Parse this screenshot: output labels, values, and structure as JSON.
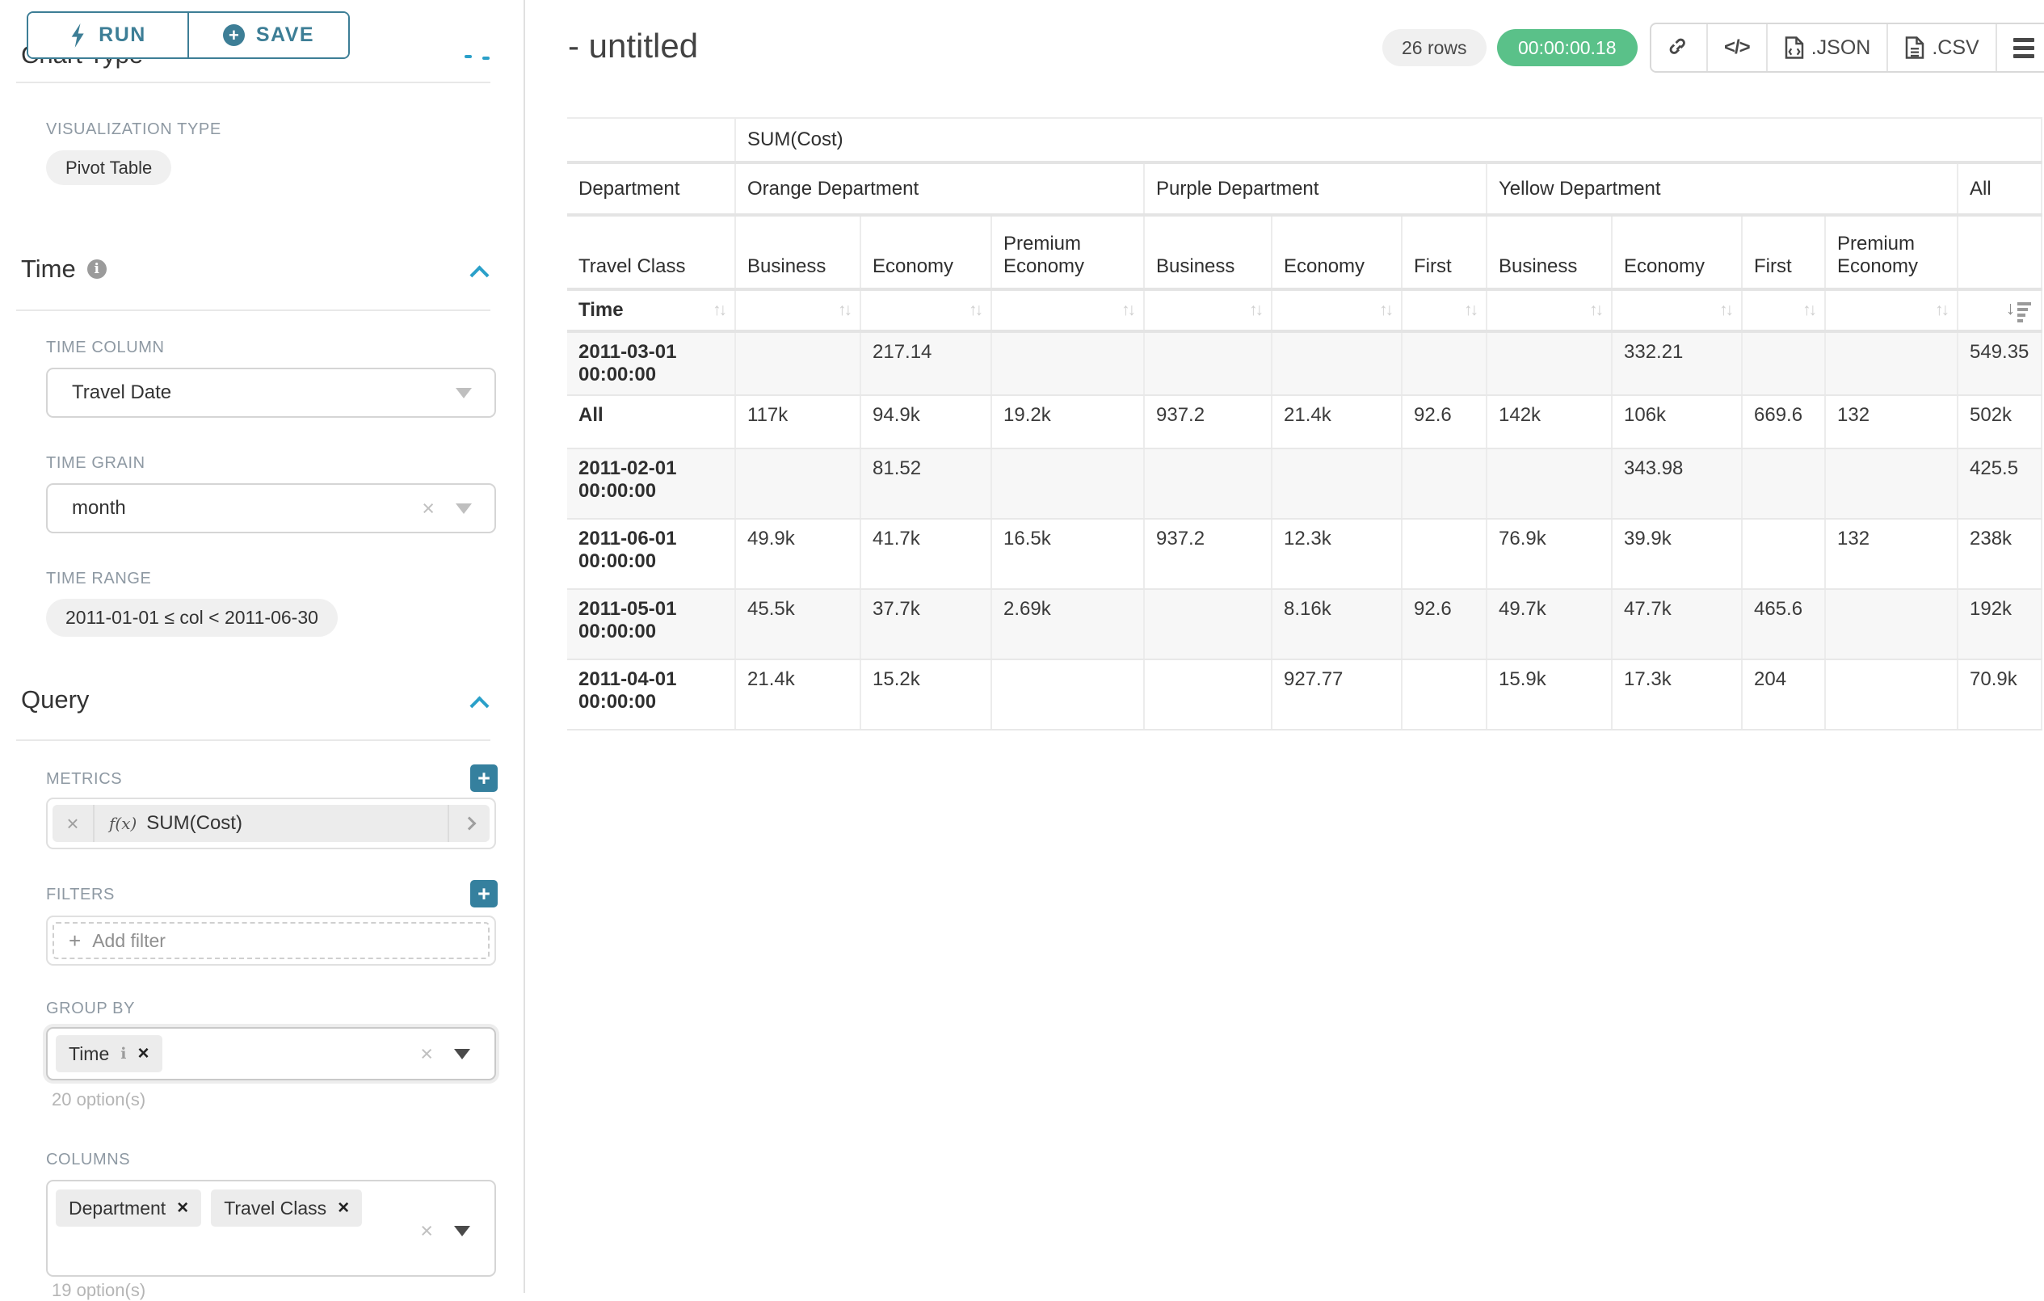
{
  "sidebar": {
    "run_label": "RUN",
    "save_label": "SAVE",
    "panel_heading": "Chart Type",
    "viz_type_label": "VISUALIZATION TYPE",
    "viz_type_value": "Pivot Table",
    "time": {
      "title": "Time",
      "column_label": "TIME COLUMN",
      "column_value": "Travel Date",
      "grain_label": "TIME GRAIN",
      "grain_value": "month",
      "range_label": "TIME RANGE",
      "range_value": "2011-01-01 ≤ col < 2011-06-30"
    },
    "query": {
      "title": "Query",
      "metrics_label": "METRICS",
      "metric_fx": "f(x)",
      "metric_value": "SUM(Cost)",
      "filters_label": "FILTERS",
      "add_filter_label": "Add filter",
      "group_by_label": "GROUP BY",
      "group_by_tags": [
        "Time"
      ],
      "group_by_options": "20 option(s)",
      "columns_label": "COLUMNS",
      "columns_tags": [
        "Department",
        "Travel Class"
      ],
      "columns_options": "19 option(s)"
    }
  },
  "header": {
    "title": "- untitled",
    "row_count": "26 rows",
    "query_time": "00:00:00.18",
    "json_label": ".JSON",
    "csv_label": ".CSV"
  },
  "colors": {
    "accent_teal": "#3d7e96",
    "bright_teal": "#2ba0c9",
    "success_green": "#5ac189"
  },
  "chart_data": {
    "type": "table",
    "metric_header": "SUM(Cost)",
    "column_dimension": "Department",
    "row_dimension_header": "Travel Class",
    "row_axis_label": "Time",
    "column_groups": [
      {
        "label": "Orange Department",
        "children": [
          "Business",
          "Economy",
          "Premium Economy"
        ]
      },
      {
        "label": "Purple Department",
        "children": [
          "Business",
          "Economy",
          "First"
        ]
      },
      {
        "label": "Yellow Department",
        "children": [
          "Business",
          "Economy",
          "First",
          "Premium Economy"
        ]
      },
      {
        "label": "All",
        "children": [
          ""
        ]
      }
    ],
    "rows": [
      {
        "label": "2011-03-01 00:00:00",
        "values": [
          "",
          "217.14",
          "",
          "",
          "",
          "",
          "",
          "332.21",
          "",
          "",
          "549.35"
        ]
      },
      {
        "label": "All",
        "values": [
          "117k",
          "94.9k",
          "19.2k",
          "937.2",
          "21.4k",
          "92.6",
          "142k",
          "106k",
          "669.6",
          "132",
          "502k"
        ]
      },
      {
        "label": "2011-02-01 00:00:00",
        "values": [
          "",
          "81.52",
          "",
          "",
          "",
          "",
          "",
          "343.98",
          "",
          "",
          "425.5"
        ]
      },
      {
        "label": "2011-06-01 00:00:00",
        "values": [
          "49.9k",
          "41.7k",
          "16.5k",
          "937.2",
          "12.3k",
          "",
          "76.9k",
          "39.9k",
          "",
          "132",
          "238k"
        ]
      },
      {
        "label": "2011-05-01 00:00:00",
        "values": [
          "45.5k",
          "37.7k",
          "2.69k",
          "",
          "8.16k",
          "92.6",
          "49.7k",
          "47.7k",
          "465.6",
          "",
          "192k"
        ]
      },
      {
        "label": "2011-04-01 00:00:00",
        "values": [
          "21.4k",
          "15.2k",
          "",
          "",
          "927.77",
          "",
          "15.9k",
          "17.3k",
          "204",
          "",
          "70.9k"
        ]
      }
    ],
    "sort": {
      "active_column": "All",
      "direction": "desc"
    }
  }
}
